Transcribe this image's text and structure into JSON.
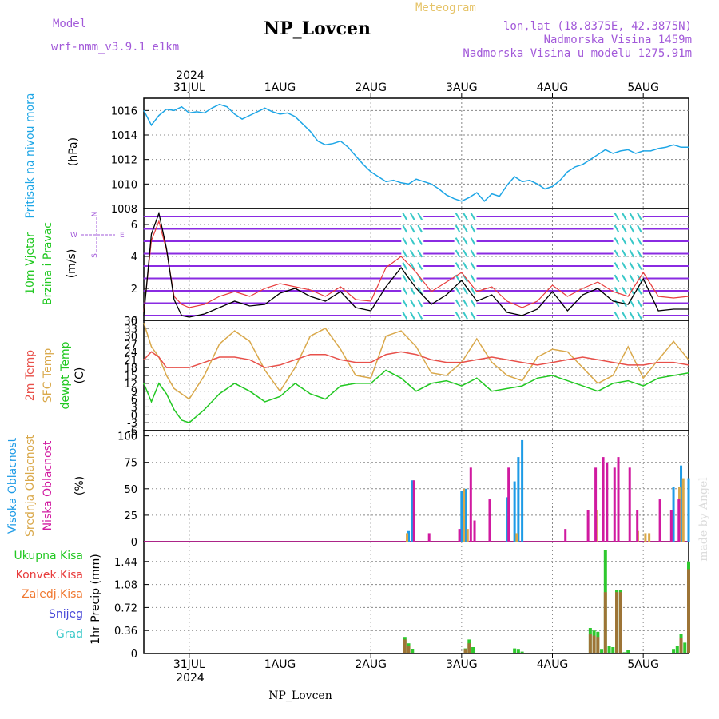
{
  "header": {
    "model_label": "Model",
    "model_name": "wrf-nmm_v3.9.1 e1km",
    "title": "NP_Lovcen",
    "product": "Meteogram",
    "coords": "lon,lat (18.8375E, 42.3875N)",
    "elevation": "Nadmorska Visina 1459m",
    "model_elevation": "Nadmorska Visina u modelu 1275.91m",
    "year_top": "2024",
    "year_bottom": "2024",
    "watermark": "made by Angel",
    "footer": "NP_Lovcen"
  },
  "colors": {
    "pressure": "#1ea6e6",
    "temp2m": "#e8504a",
    "sfc": "#d9a84a",
    "dewpt": "#22c822",
    "high_cloud": "#1e9be6",
    "mid_cloud": "#d9a84a",
    "low_cloud": "#d01aa0",
    "total_precip": "#2ec82e",
    "conv_precip": "#e83c3c",
    "frozen_precip": "#f07830",
    "snow": "#4848d8",
    "hail": "#38c8c8",
    "wind_arrows": "#8a2be2",
    "wind_speed": "#000000",
    "wind_gust": "#e83c3c"
  },
  "x_axis": {
    "dates": [
      "31JUL",
      "1AUG",
      "2AUG",
      "3AUG",
      "4AUG",
      "5AUG"
    ],
    "range_hours": [
      -12,
      132
    ]
  },
  "chart_data": [
    {
      "type": "line",
      "title": "Pritisak na nivou mora",
      "ylabel": "(hPa)",
      "ylim": [
        1008,
        1017
      ],
      "yticks": [
        "1016",
        "1014",
        "1012",
        "1010",
        "1008"
      ],
      "series": [
        {
          "name": "Pritisak na nivou mora",
          "x": [
            -12,
            -10,
            -8,
            -6,
            -4,
            -2,
            0,
            2,
            4,
            6,
            8,
            10,
            12,
            14,
            16,
            18,
            20,
            22,
            24,
            26,
            28,
            30,
            32,
            34,
            36,
            38,
            40,
            42,
            44,
            46,
            48,
            50,
            52,
            54,
            56,
            58,
            60,
            62,
            64,
            66,
            68,
            70,
            72,
            74,
            76,
            78,
            80,
            82,
            84,
            86,
            88,
            90,
            92,
            94,
            96,
            98,
            100,
            102,
            104,
            106,
            108,
            110,
            112,
            114,
            116,
            118,
            120,
            122,
            124,
            126,
            128,
            130,
            132
          ],
          "y": [
            1016.0,
            1014.8,
            1015.6,
            1016.1,
            1016.0,
            1016.3,
            1015.8,
            1015.9,
            1015.8,
            1016.2,
            1016.5,
            1016.3,
            1015.7,
            1015.3,
            1015.6,
            1015.9,
            1016.2,
            1015.9,
            1015.7,
            1015.8,
            1015.5,
            1014.9,
            1014.3,
            1013.5,
            1013.2,
            1013.3,
            1013.5,
            1013.0,
            1012.3,
            1011.6,
            1011.0,
            1010.6,
            1010.2,
            1010.3,
            1010.1,
            1010.0,
            1010.4,
            1010.2,
            1010.0,
            1009.6,
            1009.1,
            1008.8,
            1008.6,
            1008.9,
            1009.3,
            1008.6,
            1009.2,
            1009.0,
            1009.9,
            1010.6,
            1010.2,
            1010.3,
            1010.0,
            1009.6,
            1009.8,
            1010.3,
            1011.0,
            1011.4,
            1011.6,
            1012.0,
            1012.4,
            1012.8,
            1012.5,
            1012.7,
            1012.8,
            1012.5,
            1012.7,
            1012.7,
            1012.9,
            1013.0,
            1013.2,
            1013.0,
            1013.0
          ]
        }
      ]
    },
    {
      "type": "line",
      "title": "10m Vjetar Brzina i Pravac",
      "ylabel": "(m/s)",
      "ylim": [
        0,
        7
      ],
      "yticks": [
        "6",
        "4",
        "2",
        "0"
      ],
      "compass": {
        "north": "N",
        "west": "W",
        "east": "E",
        "south": "S"
      },
      "series": [
        {
          "name": "wind speed",
          "x": [
            -12,
            -10,
            -8,
            -6,
            -4,
            -2,
            0,
            4,
            8,
            12,
            16,
            20,
            24,
            28,
            32,
            36,
            40,
            44,
            48,
            52,
            56,
            60,
            64,
            68,
            72,
            76,
            80,
            84,
            88,
            92,
            96,
            100,
            104,
            108,
            112,
            116,
            120,
            124,
            128,
            132
          ],
          "y": [
            0.3,
            5.4,
            6.7,
            4.5,
            1.3,
            0.3,
            0.2,
            0.4,
            0.8,
            1.2,
            0.9,
            1.0,
            1.7,
            2.0,
            1.5,
            1.2,
            1.8,
            0.8,
            0.6,
            2.1,
            3.3,
            2.0,
            1.0,
            1.6,
            2.5,
            1.2,
            1.6,
            0.5,
            0.3,
            0.7,
            1.8,
            0.6,
            1.6,
            2.0,
            1.2,
            1.0,
            2.6,
            0.6,
            0.7,
            0.7
          ]
        },
        {
          "name": "wind gust",
          "x": [
            -12,
            -10,
            -8,
            -6,
            -4,
            -2,
            0,
            4,
            8,
            12,
            16,
            20,
            24,
            28,
            32,
            36,
            40,
            44,
            48,
            52,
            56,
            60,
            64,
            68,
            72,
            76,
            80,
            84,
            88,
            92,
            96,
            100,
            104,
            108,
            112,
            116,
            120,
            124,
            128,
            132
          ],
          "y": [
            0.5,
            5.0,
            6.2,
            4.4,
            1.5,
            1.0,
            0.8,
            1.0,
            1.5,
            1.8,
            1.5,
            2.0,
            2.3,
            2.1,
            1.9,
            1.5,
            2.1,
            1.3,
            1.2,
            3.3,
            4.0,
            3.0,
            1.8,
            2.4,
            3.0,
            1.8,
            2.1,
            1.2,
            0.8,
            1.2,
            2.2,
            1.5,
            2.0,
            2.4,
            1.8,
            1.5,
            3.0,
            1.5,
            1.4,
            1.5
          ]
        }
      ]
    },
    {
      "type": "line",
      "title": "2m Temp / SFC Temp / dewpt Temp",
      "ylabel": "(C)",
      "ylim": [
        -6,
        36
      ],
      "yticks": [
        "36",
        "33",
        "30",
        "27",
        "24",
        "21",
        "18",
        "15",
        "12",
        "9",
        "6",
        "3",
        "0",
        "-3",
        "-6"
      ],
      "series": [
        {
          "name": "2m Temp",
          "x": [
            -12,
            -10,
            -8,
            -6,
            -4,
            -2,
            0,
            4,
            8,
            12,
            16,
            20,
            24,
            28,
            32,
            36,
            40,
            44,
            48,
            52,
            56,
            60,
            64,
            68,
            72,
            76,
            80,
            84,
            88,
            92,
            96,
            100,
            104,
            108,
            112,
            116,
            120,
            124,
            128,
            132
          ],
          "y": [
            21,
            24,
            22,
            18,
            18,
            18,
            18,
            20,
            22,
            22,
            21,
            18,
            19,
            21,
            23,
            23,
            21,
            20,
            20,
            23,
            24,
            23,
            21,
            20,
            20,
            21,
            22,
            21,
            20,
            19,
            20,
            21,
            22,
            21,
            20,
            19,
            19,
            20,
            20,
            19
          ]
        },
        {
          "name": "SFC Temp",
          "x": [
            -12,
            -10,
            -8,
            -6,
            -4,
            -2,
            0,
            4,
            8,
            12,
            16,
            20,
            24,
            28,
            32,
            36,
            40,
            44,
            48,
            52,
            56,
            60,
            64,
            68,
            72,
            76,
            80,
            84,
            88,
            92,
            96,
            100,
            104,
            108,
            112,
            116,
            120,
            124,
            128,
            132
          ],
          "y": [
            35,
            26,
            22,
            15,
            10,
            8,
            6,
            15,
            27,
            32,
            28,
            17,
            9,
            18,
            30,
            33,
            25,
            15,
            14,
            30,
            32,
            26,
            16,
            15,
            20,
            29,
            20,
            15,
            13,
            22,
            25,
            24,
            18,
            12,
            15,
            26,
            14,
            21,
            28,
            21
          ]
        },
        {
          "name": "dewpt Temp",
          "x": [
            -12,
            -10,
            -8,
            -6,
            -4,
            -2,
            0,
            4,
            8,
            12,
            16,
            20,
            24,
            28,
            32,
            36,
            40,
            44,
            48,
            52,
            56,
            60,
            64,
            68,
            72,
            76,
            80,
            84,
            88,
            92,
            96,
            100,
            104,
            108,
            112,
            116,
            120,
            124,
            128,
            132
          ],
          "y": [
            12,
            5,
            12,
            8,
            2,
            -2,
            -3,
            2,
            8,
            12,
            9,
            5,
            7,
            12,
            8,
            6,
            11,
            12,
            12,
            17,
            14,
            9,
            12,
            13,
            11,
            14,
            9,
            10,
            11,
            14,
            15,
            13,
            11,
            9,
            12,
            13,
            11,
            14,
            15,
            16
          ]
        }
      ]
    },
    {
      "type": "bar",
      "title": "Visoka / Srednja / Niska Oblacnost",
      "ylabel": "(%)",
      "ylim": [
        0,
        105
      ],
      "yticks": [
        "100",
        "75",
        "50",
        "25",
        "0"
      ],
      "series": [
        {
          "name": "Visoka Oblacnost",
          "x": [
            58,
            59,
            72,
            73,
            84,
            86,
            87,
            88,
            128,
            130,
            132
          ],
          "values": [
            10,
            58,
            48,
            50,
            42,
            57,
            80,
            96,
            52,
            72,
            60
          ]
        },
        {
          "name": "Srednja Oblacnost",
          "x": [
            58,
            73,
            74,
            87,
            108,
            119,
            121,
            122,
            130,
            131
          ],
          "values": [
            8,
            50,
            12,
            8,
            30,
            10,
            8,
            8,
            52,
            60
          ]
        },
        {
          "name": "Niska Oblacnost",
          "x": [
            59,
            63,
            71,
            74,
            75,
            79,
            84,
            99,
            105,
            107,
            109,
            110,
            112,
            113,
            116,
            118,
            124,
            127,
            129
          ],
          "values": [
            58,
            8,
            12,
            70,
            20,
            40,
            70,
            12,
            30,
            70,
            80,
            75,
            70,
            80,
            70,
            30,
            40,
            30,
            40
          ]
        }
      ]
    },
    {
      "type": "bar",
      "title": "Ukupna / Konvek. / Zaledj. Kisa, Snijeg, Grad",
      "ylabel": "1hr Precip (mm)",
      "ylim": [
        0,
        1.75
      ],
      "yticks": [
        "1.44",
        "1.08",
        "0.72",
        "0.36",
        "0"
      ],
      "series": [
        {
          "name": "Ukupna Kisa",
          "x": [
            57,
            58,
            59,
            73,
            74,
            75,
            86,
            87,
            88,
            106,
            107,
            108,
            109,
            110,
            111,
            112,
            113,
            114,
            115,
            116,
            128,
            129,
            130,
            131,
            132
          ],
          "values": [
            0.26,
            0.16,
            0.07,
            0.08,
            0.22,
            0.1,
            0.08,
            0.06,
            0.03,
            0.4,
            0.36,
            0.34,
            0.06,
            1.62,
            0.12,
            0.1,
            1.0,
            1.0,
            0.02,
            0.05,
            0.06,
            0.12,
            0.3,
            0.17,
            1.44
          ]
        },
        {
          "name": "Konvek.Kisa",
          "x": [
            57,
            58,
            73,
            74,
            106,
            107,
            108,
            110,
            113,
            114,
            130,
            132
          ],
          "values": [
            0.22,
            0.12,
            0.06,
            0.16,
            0.3,
            0.28,
            0.26,
            0.96,
            0.96,
            0.96,
            0.24,
            1.32
          ]
        },
        {
          "name": "Zaledj.Kisa",
          "x": [],
          "values": []
        },
        {
          "name": "Snijeg",
          "x": [],
          "values": []
        },
        {
          "name": "Grad",
          "x": [],
          "values": []
        }
      ]
    }
  ],
  "labels": {
    "pressure_title": "Pritisak na nivou mora",
    "pressure_unit": "(hPa)",
    "wind_title_1": "10m Vjetar",
    "wind_title_2": "Brzina i Pravac",
    "wind_unit": "(m/s)",
    "temp_2m": "2m Temp",
    "temp_sfc": "SFC Temp",
    "temp_dew": "dewpt Temp",
    "temp_unit": "(C)",
    "cloud_high": "Visoka Oblacnost",
    "cloud_mid": "Srednja Oblacnost",
    "cloud_low": "Niska Oblacnost",
    "cloud_unit": "(%)",
    "precip_total": "Ukupna Kisa",
    "precip_conv": "Konvek.Kisa",
    "precip_frozen": "Zaledj.Kisa",
    "precip_snow": "Snijeg",
    "precip_hail": "Grad",
    "precip_unit": "1hr Precip (mm)"
  }
}
